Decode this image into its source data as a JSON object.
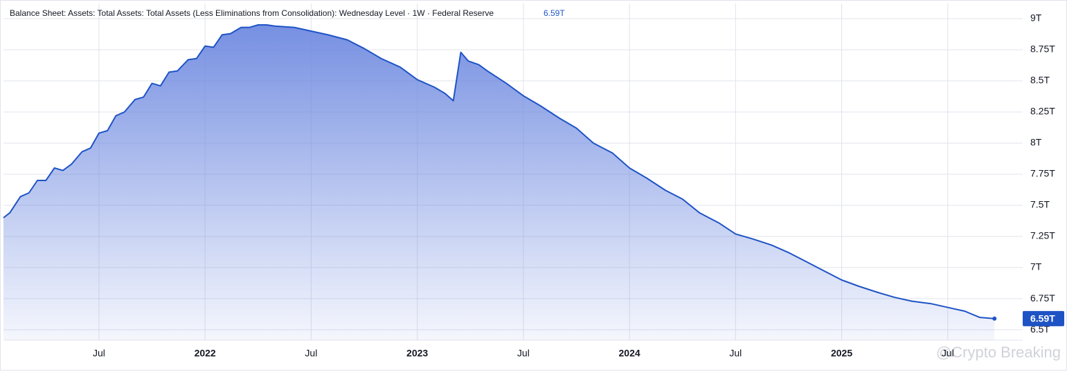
{
  "chart_data": {
    "type": "area",
    "title": "Balance Sheet: Assets: Total Assets: Total Assets (Less Eliminations from Consolidation): Wednesday Level · 1W · Federal Reserve",
    "last_value_label": "6.59T",
    "watermark": "@Crypto Breaking",
    "color": "#1e53c5",
    "grid": true,
    "x": [
      2021.05,
      2021.08,
      2021.13,
      2021.17,
      2021.21,
      2021.25,
      2021.29,
      2021.33,
      2021.37,
      2021.42,
      2021.46,
      2021.5,
      2021.54,
      2021.58,
      2021.62,
      2021.67,
      2021.71,
      2021.75,
      2021.79,
      2021.83,
      2021.87,
      2021.92,
      2021.96,
      2022.0,
      2022.04,
      2022.08,
      2022.12,
      2022.17,
      2022.21,
      2022.25,
      2022.29,
      2022.33,
      2022.42,
      2022.5,
      2022.58,
      2022.67,
      2022.75,
      2022.83,
      2022.92,
      2023.0,
      2023.08,
      2023.13,
      2023.17,
      2023.205,
      2023.24,
      2023.29,
      2023.33,
      2023.42,
      2023.5,
      2023.58,
      2023.67,
      2023.75,
      2023.83,
      2023.92,
      2024.0,
      2024.08,
      2024.17,
      2024.25,
      2024.33,
      2024.42,
      2024.5,
      2024.58,
      2024.67,
      2024.75,
      2024.83,
      2024.92,
      2025.0,
      2025.08,
      2025.17,
      2025.25,
      2025.33,
      2025.42,
      2025.5,
      2025.58,
      2025.65,
      2025.72
    ],
    "values": [
      7.4,
      7.44,
      7.57,
      7.6,
      7.7,
      7.7,
      7.8,
      7.78,
      7.83,
      7.93,
      7.96,
      8.08,
      8.1,
      8.22,
      8.25,
      8.35,
      8.37,
      8.48,
      8.46,
      8.57,
      8.58,
      8.67,
      8.68,
      8.78,
      8.77,
      8.87,
      8.88,
      8.93,
      8.93,
      8.95,
      8.95,
      8.94,
      8.93,
      8.9,
      8.87,
      8.83,
      8.76,
      8.68,
      8.61,
      8.51,
      8.45,
      8.4,
      8.34,
      8.73,
      8.66,
      8.63,
      8.58,
      8.48,
      8.38,
      8.3,
      8.2,
      8.12,
      8.0,
      7.92,
      7.8,
      7.72,
      7.62,
      7.55,
      7.44,
      7.36,
      7.27,
      7.23,
      7.18,
      7.12,
      7.05,
      6.97,
      6.9,
      6.85,
      6.8,
      6.76,
      6.73,
      6.71,
      6.68,
      6.65,
      6.6,
      6.59
    ],
    "xlim": [
      2021.05,
      2025.853
    ],
    "xticks": [
      {
        "value": 2021.5,
        "label": "Jul"
      },
      {
        "value": 2022,
        "label": "2022"
      },
      {
        "value": 2022.5,
        "label": "Jul"
      },
      {
        "value": 2023,
        "label": "2023"
      },
      {
        "value": 2023.5,
        "label": "Jul"
      },
      {
        "value": 2024,
        "label": "2024"
      },
      {
        "value": 2024.5,
        "label": "Jul"
      },
      {
        "value": 2025,
        "label": "2025"
      },
      {
        "value": 2025.5,
        "label": "Jul"
      }
    ],
    "ylim": [
      6.417,
      9.122
    ],
    "yticks": [
      {
        "value": 6.5,
        "label": "6.5T"
      },
      {
        "value": 6.75,
        "label": "6.75T"
      },
      {
        "value": 7,
        "label": "7T"
      },
      {
        "value": 7.25,
        "label": "7.25T"
      },
      {
        "value": 7.5,
        "label": "7.5T"
      },
      {
        "value": 7.75,
        "label": "7.75T"
      },
      {
        "value": 8,
        "label": "8T"
      },
      {
        "value": 8.25,
        "label": "8.25T"
      },
      {
        "value": 8.5,
        "label": "8.5T"
      },
      {
        "value": 8.75,
        "label": "8.75T"
      },
      {
        "value": 9,
        "label": "9T"
      }
    ]
  }
}
